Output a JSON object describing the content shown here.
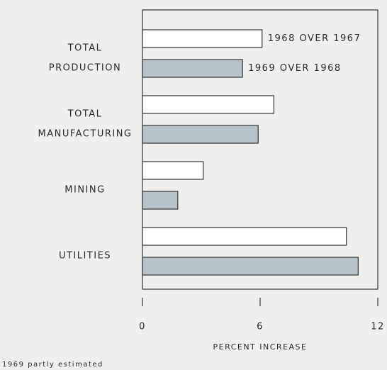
{
  "chart_data": {
    "type": "barh",
    "categories": [
      "TOTAL PRODUCTION",
      "TOTAL MANUFACTURING",
      "MINING",
      "UTILITIES"
    ],
    "series": [
      {
        "name": "1968 OVER 1967",
        "color": "#ffffff",
        "values": [
          6.1,
          6.7,
          3.1,
          10.4
        ]
      },
      {
        "name": "1969 OVER 1968",
        "color": "#b7c2c9",
        "values": [
          5.1,
          5.9,
          1.8,
          11.0
        ]
      }
    ],
    "xlim": [
      0,
      12
    ],
    "xticks": [
      0,
      6,
      12
    ],
    "xlabel": "PERCENT INCREASE",
    "note": "1969 partly estimated"
  }
}
